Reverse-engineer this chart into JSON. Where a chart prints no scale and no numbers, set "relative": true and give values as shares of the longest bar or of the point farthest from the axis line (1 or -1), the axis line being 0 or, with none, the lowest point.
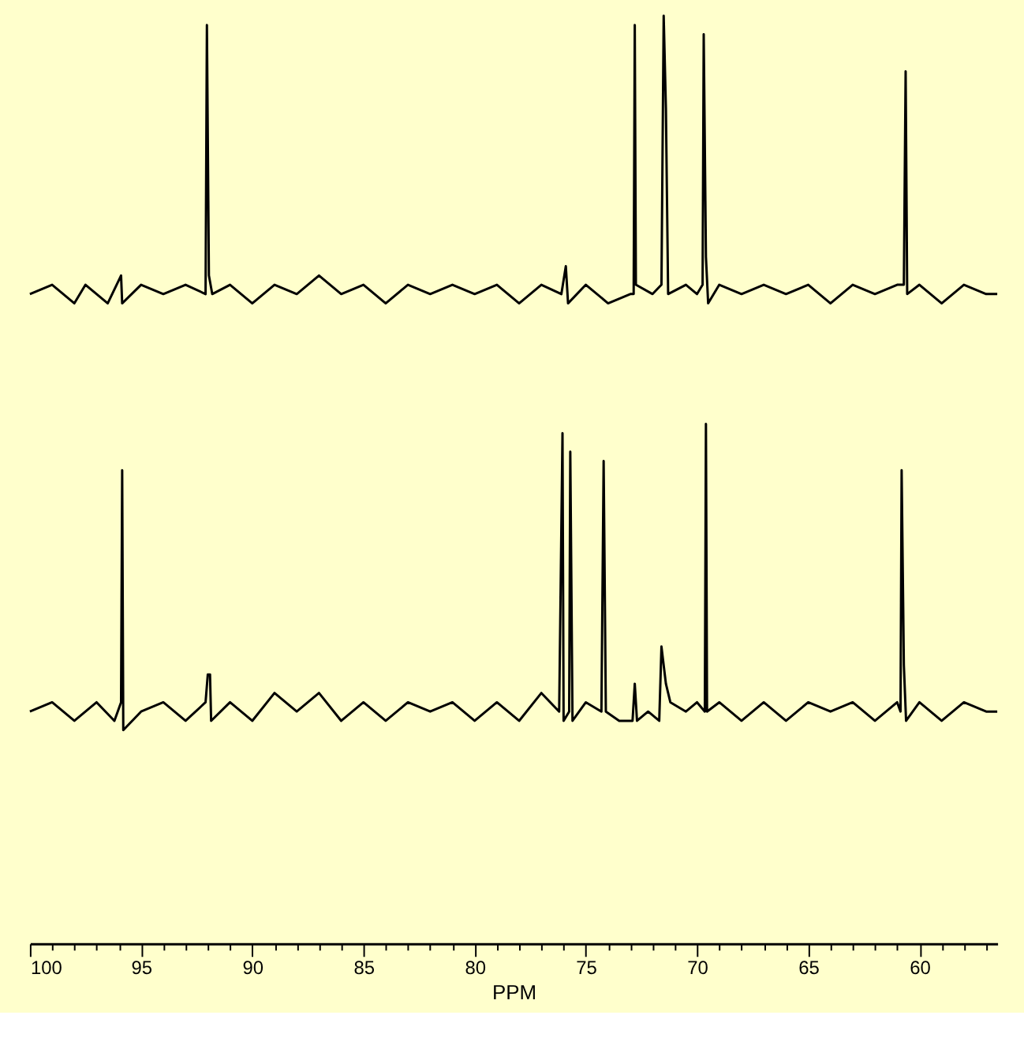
{
  "chart_data": {
    "type": "line",
    "relative": true,
    "xlabel": "PPM",
    "xlim": [
      100,
      56.5
    ],
    "xticks": [
      100,
      {
        "value": 99,
        "label": null
      },
      {
        "value": 98,
        "label": null
      },
      {
        "value": 97,
        "label": null
      },
      {
        "value": 96,
        "label": null
      },
      95,
      {
        "value": 94,
        "label": null
      },
      {
        "value": 93,
        "label": null
      },
      {
        "value": 92,
        "label": null
      },
      {
        "value": 91,
        "label": null
      },
      90,
      {
        "value": 89,
        "label": null
      },
      {
        "value": 88,
        "label": null
      },
      {
        "value": 87,
        "label": null
      },
      {
        "value": 86,
        "label": null
      },
      85,
      {
        "value": 84,
        "label": null
      },
      {
        "value": 83,
        "label": null
      },
      {
        "value": 82,
        "label": null
      },
      {
        "value": 81,
        "label": null
      },
      80,
      {
        "value": 79,
        "label": null
      },
      {
        "value": 78,
        "label": null
      },
      {
        "value": 77,
        "label": null
      },
      {
        "value": 76,
        "label": null
      },
      75,
      {
        "value": 74,
        "label": null
      },
      {
        "value": 73,
        "label": null
      },
      {
        "value": 72,
        "label": null
      },
      {
        "value": 71,
        "label": null
      },
      70,
      {
        "value": 69,
        "label": null
      },
      {
        "value": 68,
        "label": null
      },
      {
        "value": 67,
        "label": null
      },
      {
        "value": 66,
        "label": null
      },
      65,
      {
        "value": 64,
        "label": null
      },
      {
        "value": 63,
        "label": null
      },
      {
        "value": 62,
        "label": null
      },
      {
        "value": 61,
        "label": null
      },
      60,
      {
        "value": 59,
        "label": null
      },
      {
        "value": 58,
        "label": null
      },
      {
        "value": 57,
        "label": null
      }
    ],
    "series": [
      {
        "color": "#000000",
        "x": [
          100,
          99,
          98,
          97.5,
          96.5,
          95.9,
          95.85,
          95,
          94,
          93,
          92.1,
          92.04,
          91.95,
          91.8,
          91,
          90,
          89,
          88,
          87,
          86,
          85,
          84,
          83,
          82,
          81,
          80,
          79,
          78,
          77,
          76.1,
          75.9,
          75.8,
          75,
          74,
          73,
          72.85,
          72.8,
          72.75,
          72,
          71.6,
          71.5,
          71.4,
          71.3,
          70.5,
          70,
          69.75,
          69.7,
          69.6,
          69.5,
          69,
          68,
          67,
          66,
          65,
          64,
          63,
          62,
          61,
          60.7,
          60.62,
          60.55,
          60,
          59,
          58,
          57,
          56.5
        ],
        "values": [
          0.7,
          0.71,
          0.69,
          0.71,
          0.69,
          0.72,
          0.69,
          0.71,
          0.7,
          0.71,
          0.7,
          0.99,
          0.72,
          0.7,
          0.71,
          0.69,
          0.71,
          0.7,
          0.72,
          0.7,
          0.71,
          0.69,
          0.71,
          0.7,
          0.71,
          0.7,
          0.71,
          0.69,
          0.71,
          0.7,
          0.73,
          0.69,
          0.71,
          0.69,
          0.7,
          0.7,
          0.99,
          0.71,
          0.7,
          0.71,
          1,
          0.9,
          0.7,
          0.71,
          0.7,
          0.71,
          0.98,
          0.74,
          0.69,
          0.71,
          0.7,
          0.71,
          0.7,
          0.71,
          0.69,
          0.71,
          0.7,
          0.71,
          0.71,
          0.94,
          0.7,
          0.71,
          0.69,
          0.71,
          0.7,
          0.7
        ]
      },
      {
        "color": "#000000",
        "x": [
          100,
          99,
          98,
          97,
          96.2,
          95.9,
          95.85,
          95.8,
          95,
          94,
          93,
          92.1,
          92.0,
          91.9,
          91.85,
          91,
          90,
          89,
          88,
          87,
          86,
          85,
          84,
          83,
          82,
          81,
          80,
          79,
          78,
          77,
          76.2,
          76.05,
          76.0,
          75.75,
          75.7,
          75.6,
          75,
          74.3,
          74.2,
          74.1,
          73.5,
          72.9,
          72.8,
          72.7,
          72.2,
          71.7,
          71.6,
          71.4,
          71.2,
          70.5,
          70,
          69.65,
          69.6,
          69.55,
          69,
          68,
          67,
          66,
          65,
          64,
          63,
          62,
          61,
          60.85,
          60.8,
          60.7,
          60.6,
          60,
          59,
          58,
          57,
          56.5
        ],
        "values": [
          0.25,
          0.26,
          0.24,
          0.26,
          0.24,
          0.26,
          0.51,
          0.23,
          0.25,
          0.26,
          0.24,
          0.26,
          0.29,
          0.29,
          0.24,
          0.26,
          0.24,
          0.27,
          0.25,
          0.27,
          0.24,
          0.26,
          0.24,
          0.26,
          0.25,
          0.26,
          0.24,
          0.26,
          0.24,
          0.27,
          0.25,
          0.55,
          0.24,
          0.25,
          0.53,
          0.24,
          0.26,
          0.25,
          0.52,
          0.25,
          0.24,
          0.24,
          0.28,
          0.24,
          0.25,
          0.24,
          0.32,
          0.28,
          0.26,
          0.25,
          0.26,
          0.25,
          0.56,
          0.25,
          0.26,
          0.24,
          0.26,
          0.24,
          0.26,
          0.25,
          0.26,
          0.24,
          0.26,
          0.25,
          0.51,
          0.3,
          0.24,
          0.26,
          0.24,
          0.26,
          0.25,
          0.25
        ]
      }
    ]
  }
}
